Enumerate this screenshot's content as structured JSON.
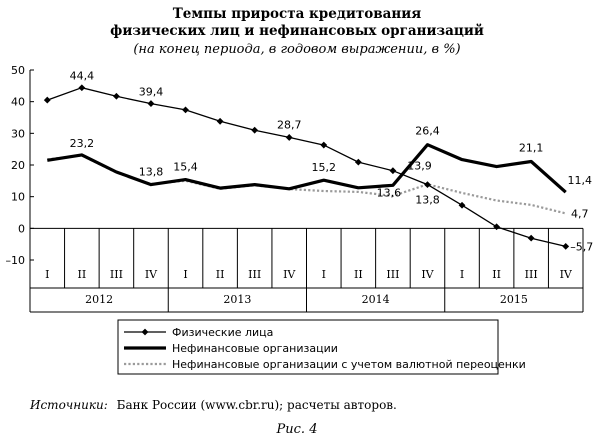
{
  "title_line1": "Темпы прироста кредитования",
  "title_line2": "физических лиц и нефинансовых организаций",
  "subtitle": "(на конец периода, в годовом выражении, в %)",
  "source_label": "Источники:",
  "source_text": "Банк России (www.cbr.ru); расчеты авторов.",
  "figure_caption": "Рис. 4",
  "colors": {
    "black": "#000000",
    "gray": "#999999"
  },
  "chart_data": {
    "type": "line",
    "ylim": [
      -10,
      50
    ],
    "yticks": [
      "50",
      "40",
      "30",
      "20",
      "10",
      "0",
      "–10"
    ],
    "quarters": [
      "I",
      "II",
      "III",
      "IV",
      "I",
      "II",
      "III",
      "IV",
      "I",
      "II",
      "III",
      "IV",
      "I",
      "II",
      "III",
      "IV"
    ],
    "years": [
      "2012",
      "2013",
      "2014",
      "2015"
    ],
    "grid": false,
    "legend_position": "bottom-center",
    "series": [
      {
        "name": "Физические лица",
        "style": "thin-marker",
        "values": [
          40.5,
          44.4,
          41.7,
          39.4,
          37.4,
          33.8,
          31.0,
          28.7,
          26.3,
          20.9,
          18.2,
          13.8,
          7.3,
          0.5,
          -3.1,
          -5.7
        ]
      },
      {
        "name": "Нефинансовые организации",
        "style": "thick",
        "values": [
          21.5,
          23.2,
          17.8,
          13.8,
          15.4,
          12.7,
          13.8,
          12.5,
          15.2,
          12.8,
          13.6,
          26.4,
          21.7,
          19.5,
          21.1,
          11.4
        ]
      },
      {
        "name": "Нефинансовые организации с учетом валютной переоценки",
        "style": "dotted-gray",
        "values": [
          21.8,
          23.0,
          17.6,
          14.0,
          15.0,
          12.5,
          13.6,
          12.4,
          11.8,
          11.5,
          10.2,
          13.9,
          11.2,
          8.8,
          7.4,
          4.7
        ]
      }
    ],
    "data_labels": [
      {
        "series": 0,
        "index": 1,
        "text": "44,4"
      },
      {
        "series": 0,
        "index": 3,
        "text": "39,4"
      },
      {
        "series": 0,
        "index": 7,
        "text": "28,7"
      },
      {
        "series": 0,
        "index": 11,
        "text": "13,8"
      },
      {
        "series": 0,
        "index": 15,
        "text": "–5,7"
      },
      {
        "series": 1,
        "index": 1,
        "text": "23,2"
      },
      {
        "series": 1,
        "index": 3,
        "text": "13,8"
      },
      {
        "series": 1,
        "index": 4,
        "text": "15,4"
      },
      {
        "series": 1,
        "index": 8,
        "text": "15,2"
      },
      {
        "series": 1,
        "index": 10,
        "text": "13,6"
      },
      {
        "series": 1,
        "index": 11,
        "text": "26,4"
      },
      {
        "series": 1,
        "index": 14,
        "text": "21,1"
      },
      {
        "series": 1,
        "index": 15,
        "text": "11,4"
      },
      {
        "series": 2,
        "index": 11,
        "text": "13,9"
      },
      {
        "series": 2,
        "index": 15,
        "text": "4,7"
      }
    ]
  }
}
